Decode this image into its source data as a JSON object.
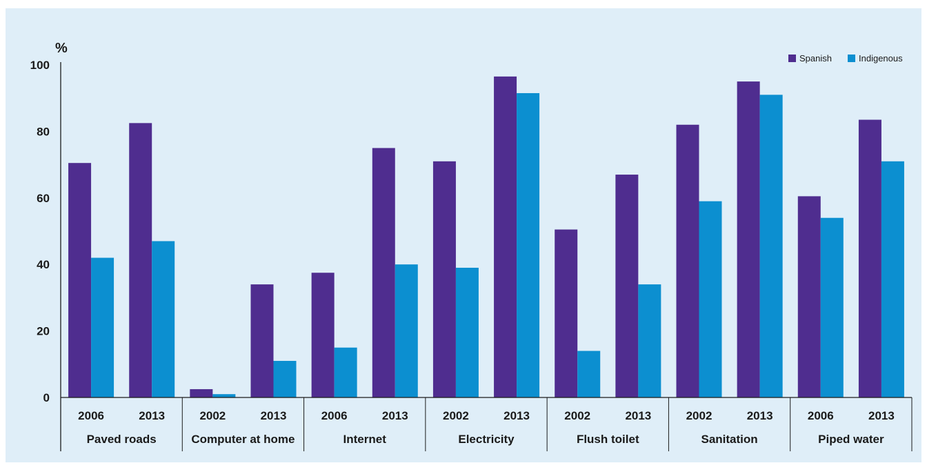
{
  "chart_data": {
    "type": "bar",
    "ylabel": "%",
    "ylim": [
      0,
      100
    ],
    "yticks": [
      0,
      20,
      40,
      60,
      80,
      100
    ],
    "grid": false,
    "legend_position": "top-right",
    "groups": [
      {
        "name": "Paved roads",
        "years": [
          "2006",
          "2013"
        ]
      },
      {
        "name": "Computer at home",
        "years": [
          "2002",
          "2013"
        ]
      },
      {
        "name": "Internet",
        "years": [
          "2006",
          "2013"
        ]
      },
      {
        "name": "Electricity",
        "years": [
          "2002",
          "2013"
        ]
      },
      {
        "name": "Flush toilet",
        "years": [
          "2002",
          "2013"
        ]
      },
      {
        "name": "Sanitation",
        "years": [
          "2002",
          "2013"
        ]
      },
      {
        "name": "Piped water",
        "years": [
          "2006",
          "2013"
        ]
      }
    ],
    "categories": [
      "2006",
      "2013",
      "2002",
      "2013",
      "2006",
      "2013",
      "2002",
      "2013",
      "2002",
      "2013",
      "2002",
      "2013",
      "2006",
      "2013"
    ],
    "series": [
      {
        "name": "Spanish",
        "color": "#4f2d8f",
        "values": [
          70.5,
          82.5,
          2.5,
          34,
          37.5,
          75,
          71,
          96.5,
          50.5,
          67,
          82,
          95,
          60.5,
          83.5
        ]
      },
      {
        "name": "Indigenous",
        "color": "#0c8fd0",
        "values": [
          42,
          47,
          1,
          11,
          15,
          40,
          39,
          91.5,
          14,
          34,
          59,
          91,
          54,
          71
        ]
      }
    ]
  }
}
